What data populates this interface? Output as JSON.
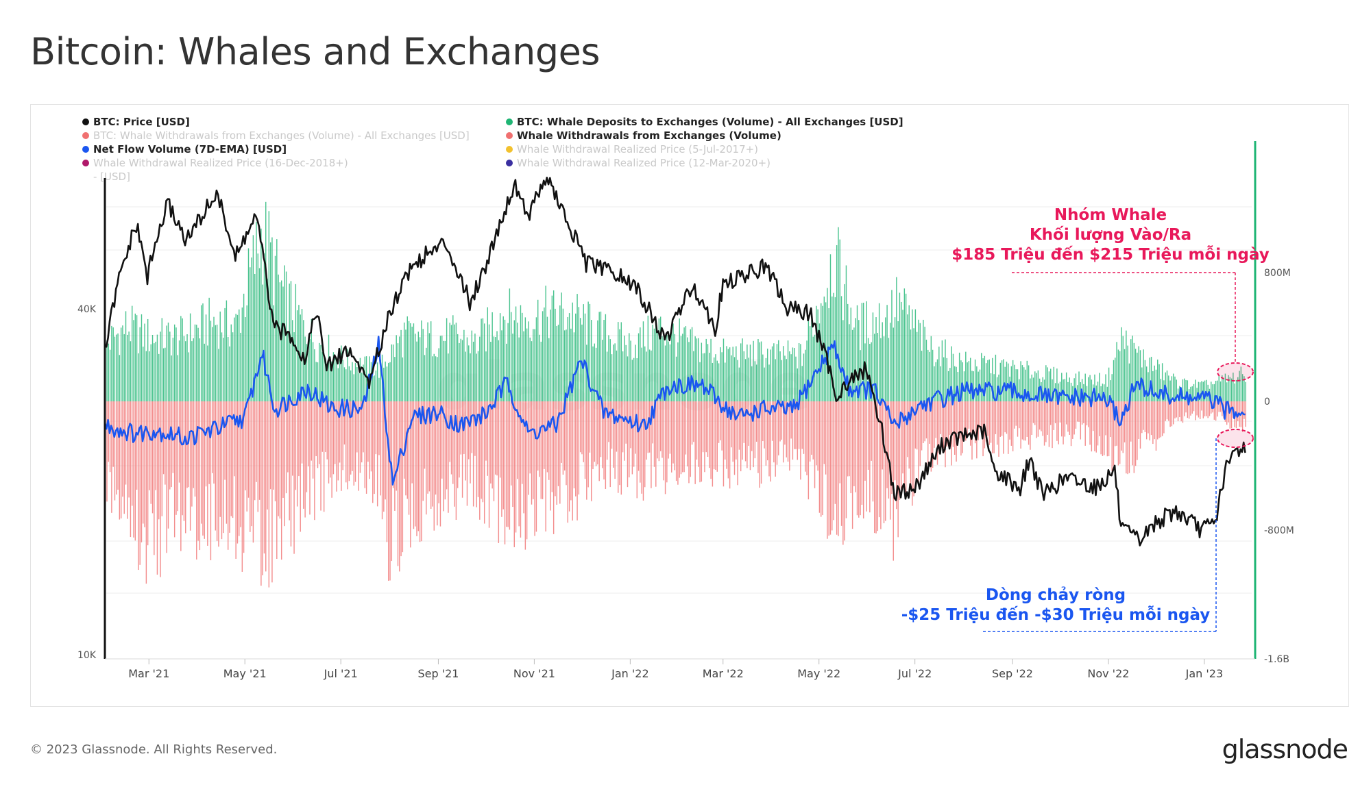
{
  "page": {
    "title": "Bitcoin: Whales and Exchanges",
    "footer": "© 2023 Glassnode. All Rights Reserved.",
    "brand": "glassnode"
  },
  "legend": {
    "col1": [
      {
        "label": "BTC: Price [USD]",
        "color": "#111111",
        "active": true
      },
      {
        "label": "BTC: Whale Withdrawals from Exchanges (Volume) - All Exchanges [USD]",
        "color": "#f07070",
        "active": false
      },
      {
        "label": "Net Flow Volume (7D-EMA) [USD]",
        "color": "#1a56f0",
        "active": true
      },
      {
        "label": "Whale Withdrawal Realized Price (16-Dec-2018+)",
        "label2": "- [USD]",
        "color": "#b0186a",
        "active": false
      }
    ],
    "col2": [
      {
        "label": "BTC: Whale Deposits to Exchanges (Volume) - All Exchanges [USD]",
        "color": "#1fb574",
        "active": true
      },
      {
        "label": "Whale Withdrawals from Exchanges (Volume)",
        "color": "#f07070",
        "active": true
      },
      {
        "label": "Whale Withdrawal Realized Price (5-Jul-2017+)",
        "color": "#f2c12e",
        "active": false
      },
      {
        "label": "Whale Withdrawal Realized Price (12-Mar-2020+)",
        "color": "#3a2fa0",
        "active": false
      }
    ]
  },
  "annotations": {
    "whale": {
      "line1": "Nhóm Whale",
      "line2": "Khối lượng Vào/Ra",
      "line3": "$185 Triệu đến $215 Triệu mỗi ngày",
      "color": "#e8185a"
    },
    "netflow": {
      "line1": "Dòng chảy ròng",
      "line2": "-$25 Triệu đến -$30 Triệu mỗi ngày",
      "color": "#1a56f0"
    }
  },
  "chart_data": {
    "type": "bar",
    "x_ticks": [
      "Mar '21",
      "May '21",
      "Jul '21",
      "Sep '21",
      "Nov '21",
      "Jan '22",
      "Mar '22",
      "May '22",
      "Jul '22",
      "Sep '22",
      "Nov '22",
      "Jan '23"
    ],
    "x_range": [
      "2021-02-01",
      "2023-02-01"
    ],
    "left_axis": {
      "label": "",
      "scale": "log",
      "ticks": [
        "40K",
        "10K"
      ],
      "tick_values": [
        40000,
        10000
      ],
      "range": [
        10000,
        70000
      ]
    },
    "right_axis": {
      "label": "",
      "ticks": [
        "800M",
        "0",
        "-800M",
        "-1.6B"
      ],
      "tick_values": [
        800000000,
        0,
        -800000000,
        -1600000000
      ],
      "range": [
        -1600000000,
        1600000000
      ]
    },
    "grid": true,
    "legend_position": "top",
    "series": [
      {
        "name": "BTC: Price [USD]",
        "type": "line",
        "axis": "left",
        "color": "#111111",
        "points": [
          [
            "2021-02-01",
            33500
          ],
          [
            "2021-02-10",
            45000
          ],
          [
            "2021-02-21",
            56000
          ],
          [
            "2021-02-28",
            45500
          ],
          [
            "2021-03-13",
            61000
          ],
          [
            "2021-03-25",
            52500
          ],
          [
            "2021-04-13",
            63500
          ],
          [
            "2021-04-25",
            49000
          ],
          [
            "2021-05-08",
            58000
          ],
          [
            "2021-05-19",
            37000
          ],
          [
            "2021-05-31",
            36000
          ],
          [
            "2021-06-08",
            32500
          ],
          [
            "2021-06-15",
            40000
          ],
          [
            "2021-06-22",
            31500
          ],
          [
            "2021-07-05",
            34000
          ],
          [
            "2021-07-20",
            29800
          ],
          [
            "2021-08-01",
            39500
          ],
          [
            "2021-08-14",
            47000
          ],
          [
            "2021-08-23",
            49500
          ],
          [
            "2021-09-06",
            52000
          ],
          [
            "2021-09-21",
            41000
          ],
          [
            "2021-10-01",
            47500
          ],
          [
            "2021-10-20",
            66000
          ],
          [
            "2021-10-28",
            58000
          ],
          [
            "2021-11-09",
            68000
          ],
          [
            "2021-11-20",
            58000
          ],
          [
            "2021-12-04",
            48000
          ],
          [
            "2021-12-20",
            46500
          ],
          [
            "2022-01-05",
            43500
          ],
          [
            "2022-01-23",
            35000
          ],
          [
            "2022-02-10",
            44000
          ],
          [
            "2022-02-24",
            37000
          ],
          [
            "2022-03-01",
            44000
          ],
          [
            "2022-03-28",
            47500
          ],
          [
            "2022-04-11",
            40000
          ],
          [
            "2022-04-25",
            39500
          ],
          [
            "2022-05-09",
            30500
          ],
          [
            "2022-05-12",
            28500
          ],
          [
            "2022-05-31",
            31500
          ],
          [
            "2022-06-13",
            22500
          ],
          [
            "2022-06-18",
            19000
          ],
          [
            "2022-07-01",
            19500
          ],
          [
            "2022-07-20",
            23500
          ],
          [
            "2022-08-14",
            24500
          ],
          [
            "2022-08-20",
            21000
          ],
          [
            "2022-09-06",
            19500
          ],
          [
            "2022-09-12",
            22000
          ],
          [
            "2022-09-20",
            19000
          ],
          [
            "2022-10-05",
            20300
          ],
          [
            "2022-10-25",
            19600
          ],
          [
            "2022-11-05",
            21000
          ],
          [
            "2022-11-09",
            16500
          ],
          [
            "2022-11-21",
            15800
          ],
          [
            "2022-12-01",
            17000
          ],
          [
            "2022-12-14",
            17800
          ],
          [
            "2022-12-30",
            16500
          ],
          [
            "2023-01-08",
            17000
          ],
          [
            "2023-01-14",
            20800
          ],
          [
            "2023-01-21",
            22700
          ],
          [
            "2023-01-31",
            23200
          ]
        ]
      },
      {
        "name": "BTC: Whale Deposits to Exchanges (Volume) - All Exchanges [USD]",
        "type": "bar",
        "axis": "right",
        "color": "#1fb574",
        "points": [
          [
            "2021-02-01",
            430000000
          ],
          [
            "2021-02-15",
            560000000
          ],
          [
            "2021-03-01",
            480000000
          ],
          [
            "2021-03-20",
            480000000
          ],
          [
            "2021-04-10",
            600000000
          ],
          [
            "2021-04-25",
            560000000
          ],
          [
            "2021-05-12",
            1270000000
          ],
          [
            "2021-05-25",
            800000000
          ],
          [
            "2021-06-15",
            440000000
          ],
          [
            "2021-07-05",
            300000000
          ],
          [
            "2021-07-25",
            240000000
          ],
          [
            "2021-08-10",
            500000000
          ],
          [
            "2021-08-25",
            470000000
          ],
          [
            "2021-09-10",
            490000000
          ],
          [
            "2021-09-25",
            430000000
          ],
          [
            "2021-10-10",
            660000000
          ],
          [
            "2021-10-25",
            620000000
          ],
          [
            "2021-11-10",
            660000000
          ],
          [
            "2021-11-25",
            650000000
          ],
          [
            "2021-12-10",
            540000000
          ],
          [
            "2022-01-01",
            420000000
          ],
          [
            "2022-01-20",
            540000000
          ],
          [
            "2022-02-10",
            420000000
          ],
          [
            "2022-03-01",
            360000000
          ],
          [
            "2022-03-25",
            360000000
          ],
          [
            "2022-04-20",
            340000000
          ],
          [
            "2022-05-10",
            1090000000
          ],
          [
            "2022-05-25",
            560000000
          ],
          [
            "2022-06-13",
            640000000
          ],
          [
            "2022-06-20",
            740000000
          ],
          [
            "2022-07-10",
            400000000
          ],
          [
            "2022-08-01",
            290000000
          ],
          [
            "2022-08-25",
            260000000
          ],
          [
            "2022-09-15",
            220000000
          ],
          [
            "2022-10-10",
            170000000
          ],
          [
            "2022-10-31",
            160000000
          ],
          [
            "2022-11-09",
            470000000
          ],
          [
            "2022-11-25",
            300000000
          ],
          [
            "2022-12-15",
            140000000
          ],
          [
            "2023-01-01",
            120000000
          ],
          [
            "2023-01-31",
            220000000
          ]
        ]
      },
      {
        "name": "Whale Withdrawals from Exchanges (Volume)",
        "type": "bar",
        "axis": "right",
        "color": "#f07070",
        "points": [
          [
            "2021-02-01",
            -640000000
          ],
          [
            "2021-02-15",
            -800000000
          ],
          [
            "2021-02-28",
            -1200000000
          ],
          [
            "2021-03-15",
            -900000000
          ],
          [
            "2021-04-01",
            -950000000
          ],
          [
            "2021-04-20",
            -940000000
          ],
          [
            "2021-05-10",
            -1100000000
          ],
          [
            "2021-05-20",
            -1120000000
          ],
          [
            "2021-06-10",
            -740000000
          ],
          [
            "2021-07-05",
            -560000000
          ],
          [
            "2021-07-25",
            -640000000
          ],
          [
            "2021-08-01",
            -1200000000
          ],
          [
            "2021-08-15",
            -880000000
          ],
          [
            "2021-09-05",
            -760000000
          ],
          [
            "2021-09-20",
            -640000000
          ],
          [
            "2021-10-05",
            -820000000
          ],
          [
            "2021-10-25",
            -940000000
          ],
          [
            "2021-11-10",
            -930000000
          ],
          [
            "2021-11-25",
            -760000000
          ],
          [
            "2021-12-15",
            -520000000
          ],
          [
            "2022-01-05",
            -600000000
          ],
          [
            "2022-01-25",
            -560000000
          ],
          [
            "2022-02-15",
            -500000000
          ],
          [
            "2022-03-10",
            -550000000
          ],
          [
            "2022-03-30",
            -520000000
          ],
          [
            "2022-04-20",
            -500000000
          ],
          [
            "2022-05-12",
            -1000000000
          ],
          [
            "2022-05-25",
            -720000000
          ],
          [
            "2022-06-18",
            -960000000
          ],
          [
            "2022-07-05",
            -520000000
          ],
          [
            "2022-07-30",
            -360000000
          ],
          [
            "2022-08-25",
            -330000000
          ],
          [
            "2022-09-20",
            -290000000
          ],
          [
            "2022-10-15",
            -270000000
          ],
          [
            "2022-11-09",
            -480000000
          ],
          [
            "2022-11-25",
            -380000000
          ],
          [
            "2022-12-15",
            -130000000
          ],
          [
            "2023-01-05",
            -110000000
          ],
          [
            "2023-01-31",
            -230000000
          ]
        ]
      },
      {
        "name": "Net Flow Volume (7D-EMA) [USD]",
        "type": "line",
        "axis": "right",
        "color": "#1a56f0",
        "points": [
          [
            "2021-02-01",
            -150000000
          ],
          [
            "2021-02-20",
            -200000000
          ],
          [
            "2021-03-05",
            -180000000
          ],
          [
            "2021-03-25",
            -230000000
          ],
          [
            "2021-04-15",
            -160000000
          ],
          [
            "2021-05-01",
            -100000000
          ],
          [
            "2021-05-12",
            300000000
          ],
          [
            "2021-05-20",
            -50000000
          ],
          [
            "2021-06-10",
            80000000
          ],
          [
            "2021-06-25",
            -40000000
          ],
          [
            "2021-07-15",
            -50000000
          ],
          [
            "2021-07-25",
            350000000
          ],
          [
            "2021-08-03",
            -520000000
          ],
          [
            "2021-08-15",
            -100000000
          ],
          [
            "2021-09-01",
            -70000000
          ],
          [
            "2021-09-15",
            -150000000
          ],
          [
            "2021-10-01",
            -80000000
          ],
          [
            "2021-10-15",
            120000000
          ],
          [
            "2021-10-28",
            -200000000
          ],
          [
            "2021-11-15",
            -150000000
          ],
          [
            "2021-12-01",
            260000000
          ],
          [
            "2021-12-15",
            -70000000
          ],
          [
            "2022-01-10",
            -150000000
          ],
          [
            "2022-01-25",
            100000000
          ],
          [
            "2022-02-15",
            100000000
          ],
          [
            "2022-03-10",
            -100000000
          ],
          [
            "2022-03-25",
            -50000000
          ],
          [
            "2022-04-15",
            -50000000
          ],
          [
            "2022-05-10",
            350000000
          ],
          [
            "2022-05-20",
            80000000
          ],
          [
            "2022-06-05",
            70000000
          ],
          [
            "2022-06-18",
            -150000000
          ],
          [
            "2022-07-05",
            -20000000
          ],
          [
            "2022-08-01",
            60000000
          ],
          [
            "2022-08-30",
            60000000
          ],
          [
            "2022-09-30",
            20000000
          ],
          [
            "2022-10-30",
            20000000
          ],
          [
            "2022-11-09",
            -120000000
          ],
          [
            "2022-11-18",
            100000000
          ],
          [
            "2022-12-10",
            30000000
          ],
          [
            "2023-01-05",
            10000000
          ],
          [
            "2023-01-15",
            -60000000
          ],
          [
            "2023-01-31",
            -30000000
          ]
        ]
      }
    ]
  }
}
